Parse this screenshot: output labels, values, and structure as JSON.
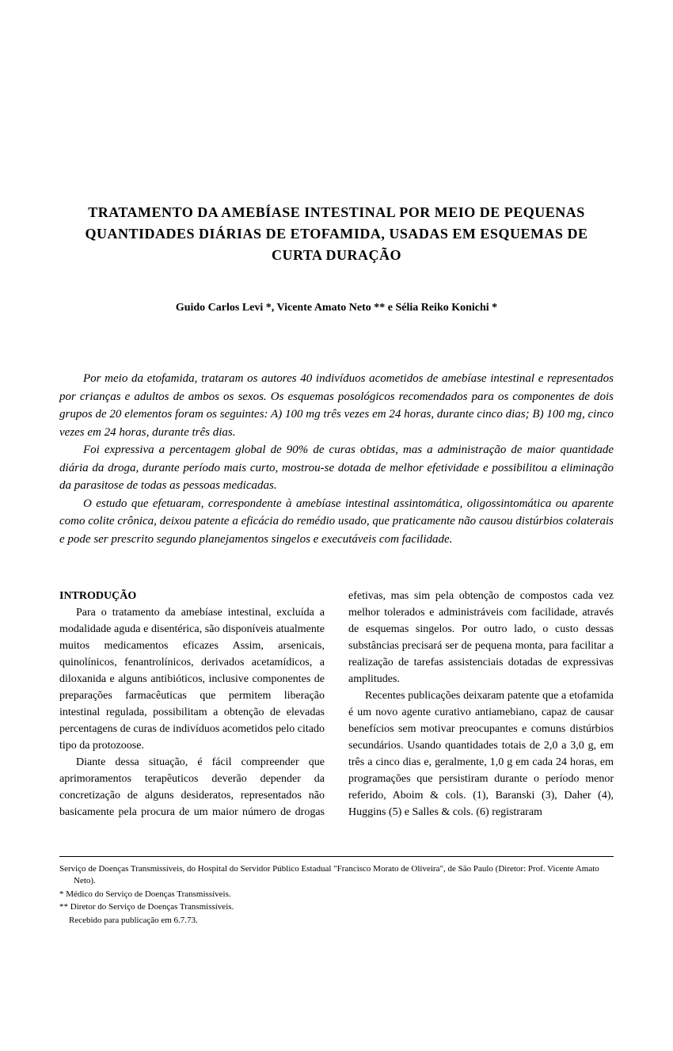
{
  "title": "TRATAMENTO DA AMEBÍASE INTESTINAL POR MEIO DE PEQUENAS QUANTIDADES DIÁRIAS DE ETOFAMIDA, USADAS EM ESQUEMAS DE CURTA DURAÇÃO",
  "authors": "Guido Carlos Levi *,   Vicente Amato Neto **   e   Sélia Reiko Konichi *",
  "abstract": {
    "p1": "Por meio da etofamida, trataram os autores 40 indivíduos acometidos de amebíase intestinal e representados por crianças e adultos de ambos os sexos. Os esquemas posológicos recomendados para os componentes de dois grupos de 20 elementos foram os seguintes: A) 100 mg três vezes em 24 horas, durante cinco dias; B) 100 mg, cinco vezes em 24 horas, durante três dias.",
    "p2": "Foi expressiva a percentagem global de 90% de curas obtidas, mas a administração de maior quantidade diária da droga, durante período mais curto, mostrou-se dotada de melhor efetividade e possibilitou a eliminação da parasitose de todas as pessoas medicadas.",
    "p3": "O estudo que efetuaram, correspondente à amebíase intestinal assintomática, oligossintomática ou aparente como colite crônica, deixou patente a eficácia do remédio usado, que praticamente não causou distúrbios colaterais e pode ser prescrito segundo planejamentos singelos e executáveis com facilidade."
  },
  "section1_header": "INTRODUÇÃO",
  "body": {
    "p1": "Para o tratamento da amebíase intestinal, excluída a modalidade aguda e disentérica, são disponíveis atualmente muitos medicamentos eficazes Assim, arsenicais, quinolínicos, fenantrolínicos, derivados acetamídicos, a diloxanida e alguns antibióticos, inclusive componentes de preparações farmacêuticas que permitem liberação intestinal regulada, possibilitam a obtenção de elevadas percentagens de curas de indivíduos acometidos pelo citado tipo da protozoose.",
    "p2": "Diante dessa situação, é fácil compreender que aprimoramentos terapêuticos deverão depender da concretização de alguns desideratos, representados não basicamente pela procura de um maior número de drogas efetivas, mas sim pela obtenção de compostos cada vez melhor tolerados e administráveis com facilidade, através de esquemas singelos. Por outro lado, o custo dessas substâncias precisará ser de pequena monta, para facilitar a realização de tarefas assistenciais dotadas de expressivas amplitudes.",
    "p3": "Recentes publicações deixaram patente que a etofamida é um novo agente curativo antiamebiano, capaz de causar benefícios sem motivar preocupantes e comuns distúrbios secundários. Usando quantidades totais de 2,0 a 3,0 g, em três a cinco dias e, geralmente, 1,0 g em cada 24 horas, em programações que persistiram durante o período menor referido, Aboim & cols. (1), Baranski (3), Daher (4), Huggins (5) e Salles & cols. (6) registraram"
  },
  "footnotes": {
    "f1": "Serviço de Doenças Transmissíveis, do Hospital do Servidor Público Estadual \"Francisco Morato de Oliveira\", de São Paulo (Diretor: Prof. Vicente Amato Neto).",
    "f2": "*  Médico do Serviço de Doenças Transmissíveis.",
    "f3": "** Diretor do Serviço de Doenças Transmissíveis.",
    "f4": "Recebido para publicação em 6.7.73."
  }
}
